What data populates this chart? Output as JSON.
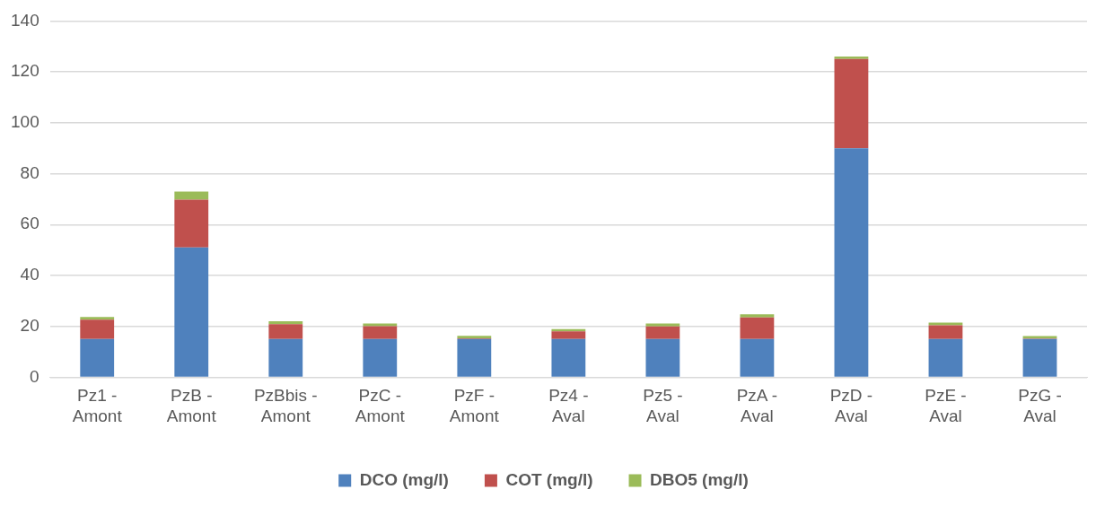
{
  "chart_data": {
    "type": "bar",
    "stacked": true,
    "categories": [
      "Pz1 - Amont",
      "PzB - Amont",
      "PzBbis - Amont",
      "PzC - Amont",
      "PzF - Amont",
      "Pz4 - Aval",
      "Pz5 - Aval",
      "PzA - Aval",
      "PzD - Aval",
      "PzE - Aval",
      "PzG - Aval"
    ],
    "series": [
      {
        "name": "DCO (mg/l)",
        "color": "#4f81bd",
        "values": [
          15,
          51,
          15,
          15,
          15,
          15,
          15,
          15,
          90,
          15,
          15
        ]
      },
      {
        "name": "COT (mg/l)",
        "color": "#c0504d",
        "values": [
          7.6,
          18.8,
          5.9,
          5.1,
          0.3,
          3.0,
          5.0,
          8.5,
          35.1,
          5.4,
          0.2
        ]
      },
      {
        "name": "DBO5 (mg/l)",
        "color": "#9bbb59",
        "values": [
          1.1,
          3.2,
          1.1,
          1.0,
          1.0,
          0.9,
          1.1,
          1.2,
          0.9,
          1.1,
          1.0
        ]
      }
    ],
    "ylim": [
      0,
      140
    ],
    "yticks": [
      0,
      20,
      40,
      60,
      80,
      100,
      120,
      140
    ],
    "grid": "y",
    "legend": "bottom"
  }
}
